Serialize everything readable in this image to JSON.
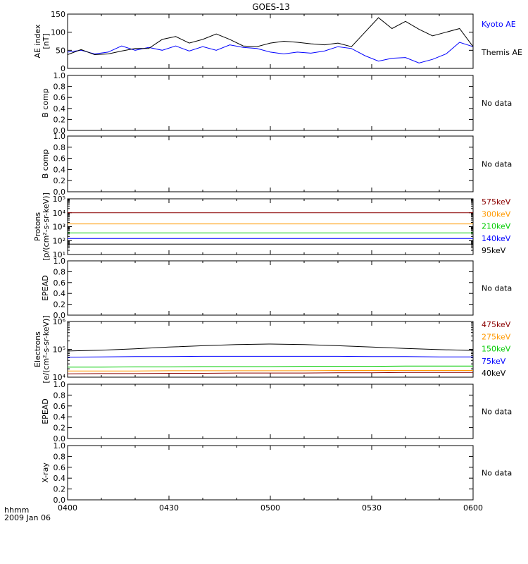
{
  "title": "GOES-13",
  "footer": {
    "time_label": "hhmm",
    "date_label": "2009 Jan 06"
  },
  "x_ticks": [
    "0400",
    "0430",
    "0500",
    "0530",
    "0600"
  ],
  "chart_data": [
    {
      "id": "ae",
      "type": "line",
      "ylabel": [
        "AE index",
        "[nT]"
      ],
      "ylim": [
        0,
        150
      ],
      "yticks": [
        0,
        50,
        100,
        150
      ],
      "ytick_labels": [
        "0",
        "50",
        "100",
        "150"
      ],
      "log": false,
      "x": [
        0,
        4,
        8,
        12,
        16,
        20,
        24,
        28,
        32,
        36,
        40,
        44,
        48,
        52,
        56,
        60,
        64,
        68,
        72,
        76,
        80,
        84,
        88,
        92,
        96,
        100,
        104,
        108,
        112,
        116,
        120
      ],
      "series": [
        {
          "name": "Kyoto AE",
          "color": "#0000ff",
          "values": [
            45,
            50,
            40,
            45,
            62,
            50,
            58,
            50,
            62,
            48,
            60,
            50,
            65,
            58,
            55,
            45,
            40,
            45,
            42,
            48,
            60,
            55,
            35,
            20,
            28,
            30,
            15,
            25,
            40,
            72,
            60
          ]
        },
        {
          "name": "Themis AE",
          "color": "#000000",
          "values": [
            38,
            52,
            38,
            40,
            48,
            55,
            55,
            80,
            88,
            70,
            80,
            95,
            80,
            62,
            60,
            70,
            75,
            72,
            68,
            65,
            70,
            60,
            100,
            140,
            110,
            130,
            108,
            90,
            100,
            110,
            60
          ]
        }
      ]
    },
    {
      "id": "bcomp1",
      "type": "line",
      "ylabel": [
        "B comp"
      ],
      "ylim": [
        0,
        1
      ],
      "yticks": [
        0,
        0.2,
        0.4,
        0.6,
        0.8,
        1.0
      ],
      "ytick_labels": [
        "0.0",
        "0.2",
        "0.4",
        "0.6",
        "0.8",
        "1.0"
      ],
      "log": false,
      "status": "No data",
      "series": []
    },
    {
      "id": "bcomp2",
      "type": "line",
      "ylabel": [
        "B comp"
      ],
      "ylim": [
        0,
        1
      ],
      "yticks": [
        0,
        0.2,
        0.4,
        0.6,
        0.8,
        1.0
      ],
      "ytick_labels": [
        "0.0",
        "0.2",
        "0.4",
        "0.6",
        "0.8",
        "1.0"
      ],
      "log": false,
      "status": "No data",
      "series": []
    },
    {
      "id": "protons",
      "type": "line",
      "ylabel": [
        "Protons",
        "[p/(cm²-s-sr-keV)]"
      ],
      "ylim": [
        1,
        5
      ],
      "log": true,
      "yticks": [
        1,
        2,
        3,
        4,
        5
      ],
      "ytick_labels": [
        "10¹",
        "10²",
        "10³",
        "10⁴",
        "10⁵"
      ],
      "x": [
        0,
        20,
        40,
        60,
        80,
        100,
        120
      ],
      "series": [
        {
          "name": "575keV",
          "color": "#8b0000",
          "values": [
            4.0,
            4.0,
            4.0,
            4.0,
            4.0,
            4.0,
            4.0
          ]
        },
        {
          "name": "300keV",
          "color": "#ff9900",
          "values": [
            3.2,
            3.2,
            3.2,
            3.2,
            3.2,
            3.2,
            3.2
          ]
        },
        {
          "name": "210keV",
          "color": "#00cc00",
          "values": [
            2.55,
            2.55,
            2.55,
            2.55,
            2.55,
            2.55,
            2.55
          ]
        },
        {
          "name": "140keV",
          "color": "#0000ff",
          "values": [
            2.15,
            2.15,
            2.15,
            2.15,
            2.15,
            2.15,
            2.15
          ]
        },
        {
          "name": "95keV",
          "color": "#000000",
          "values": [
            1.75,
            1.75,
            1.75,
            1.75,
            1.75,
            1.75,
            1.75
          ]
        }
      ]
    },
    {
      "id": "epead1",
      "type": "line",
      "ylabel": [
        "EPEAD"
      ],
      "ylim": [
        0,
        1
      ],
      "yticks": [
        0,
        0.2,
        0.4,
        0.6,
        0.8,
        1.0
      ],
      "ytick_labels": [
        "0.0",
        "0.2",
        "0.4",
        "0.6",
        "0.8",
        "1.0"
      ],
      "log": false,
      "status": "No data",
      "series": []
    },
    {
      "id": "electrons",
      "type": "line",
      "ylabel": [
        "Electrons",
        "[e/(cm²-s-sr-keV)]"
      ],
      "ylim": [
        4,
        6
      ],
      "log": true,
      "yticks": [
        4,
        5,
        6
      ],
      "ytick_labels": [
        "10⁴",
        "10⁵",
        "10⁶"
      ],
      "x": [
        0,
        10,
        20,
        30,
        40,
        50,
        60,
        70,
        80,
        90,
        100,
        110,
        120
      ],
      "series": [
        {
          "name": "475keV",
          "color": "#8b0000",
          "values": [
            4.12,
            4.13,
            4.13,
            4.14,
            4.14,
            4.15,
            4.15,
            4.15,
            4.16,
            4.16,
            4.17,
            4.17,
            4.17
          ]
        },
        {
          "name": "275keV",
          "color": "#ff9900",
          "values": [
            4.22,
            4.22,
            4.22,
            4.23,
            4.23,
            4.23,
            4.23,
            4.23,
            4.24,
            4.24,
            4.24,
            4.24,
            4.24
          ]
        },
        {
          "name": "150keV",
          "color": "#00cc00",
          "values": [
            4.36,
            4.36,
            4.37,
            4.37,
            4.38,
            4.38,
            4.38,
            4.39,
            4.39,
            4.39,
            4.4,
            4.4,
            4.4
          ]
        },
        {
          "name": "75keV",
          "color": "#0000ff",
          "values": [
            4.72,
            4.73,
            4.74,
            4.74,
            4.75,
            4.75,
            4.75,
            4.75,
            4.75,
            4.74,
            4.74,
            4.73,
            4.73
          ]
        },
        {
          "name": "40keV",
          "color": "#000000",
          "values": [
            4.94,
            4.97,
            5.02,
            5.08,
            5.13,
            5.17,
            5.19,
            5.17,
            5.13,
            5.08,
            5.03,
            4.99,
            4.96
          ]
        }
      ]
    },
    {
      "id": "epead2",
      "type": "line",
      "ylabel": [
        "EPEAD"
      ],
      "ylim": [
        0,
        1
      ],
      "yticks": [
        0,
        0.2,
        0.4,
        0.6,
        0.8,
        1.0
      ],
      "ytick_labels": [
        "0.0",
        "0.2",
        "0.4",
        "0.6",
        "0.8",
        "1.0"
      ],
      "log": false,
      "status": "No data",
      "series": []
    },
    {
      "id": "xray",
      "type": "line",
      "ylabel": [
        "X-ray"
      ],
      "ylim": [
        0,
        1
      ],
      "yticks": [
        0,
        0.2,
        0.4,
        0.6,
        0.8,
        1.0
      ],
      "ytick_labels": [
        "0.0",
        "0.2",
        "0.4",
        "0.6",
        "0.8",
        "1.0"
      ],
      "log": false,
      "status": "No data",
      "series": []
    }
  ]
}
